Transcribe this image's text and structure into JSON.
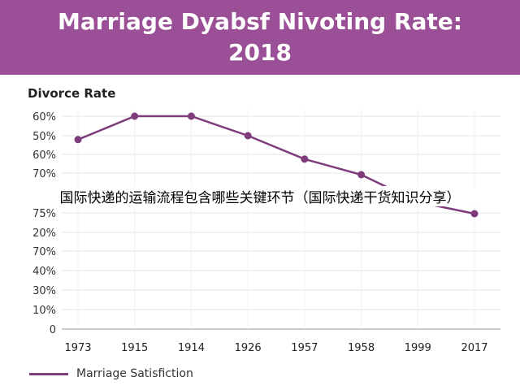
{
  "header": {
    "title_line1": "Marriage Dyabsf Nivoting Rate:",
    "title_line2": "2018"
  },
  "overlay_text": "国际快递的运输流程包含哪些关键环节（国际快递干货知识分享）",
  "colors": {
    "banner": "#9b4f96",
    "line": "#7e3c7d",
    "grid": "#e6e6e6"
  },
  "chart_data": {
    "type": "line",
    "title": "Divorce Rate",
    "categories": [
      "1973",
      "1915",
      "1914",
      "1926",
      "1957",
      "1958",
      "1999",
      "2017"
    ],
    "upper_axis_ticks": [
      "60%",
      "50%",
      "60%",
      "70%"
    ],
    "lower_axis_ticks": [
      "75%",
      "20%",
      "70%",
      "40%",
      "30%",
      "10%",
      "0"
    ],
    "series": [
      {
        "name": "Marriage Satisfiction",
        "values": [
          54,
          60,
          60,
          55,
          49,
          45,
          38,
          35
        ]
      }
    ],
    "ylim_upper": [
      30,
      65
    ],
    "grid": true,
    "legend": "bottom-left"
  }
}
